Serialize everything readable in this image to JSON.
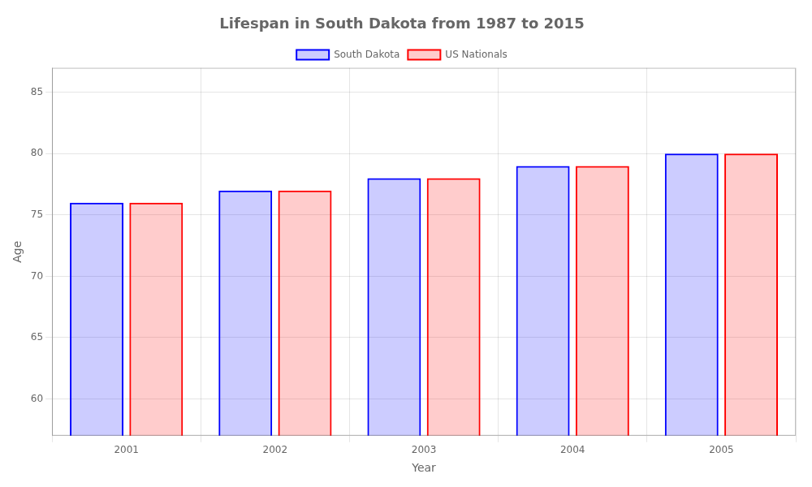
{
  "chart_data": {
    "type": "bar",
    "title": "Lifespan in South Dakota from 1987 to 2015",
    "x_label": "Year",
    "y_label": "Age",
    "categories": [
      2001,
      2002,
      2003,
      2004,
      2005
    ],
    "series": [
      {
        "name": "South Dakota",
        "color": "#0000ff",
        "values": [
          76,
          77,
          78,
          79,
          80
        ]
      },
      {
        "name": "US Nationals",
        "color": "#ff0000",
        "values": [
          76,
          77,
          78,
          79,
          80
        ]
      }
    ],
    "ylim": [
      57,
      87
    ],
    "yticks": [
      60,
      65,
      70,
      75,
      80,
      85
    ],
    "grid": true,
    "legend": "top"
  }
}
